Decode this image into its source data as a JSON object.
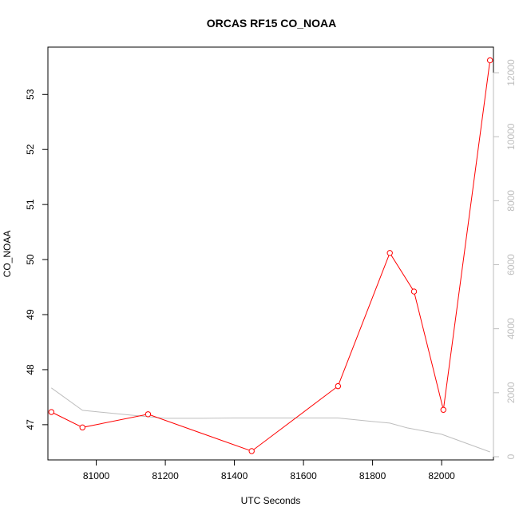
{
  "chart_data": {
    "type": "line",
    "title": "ORCAS RF15 CO_NOAA",
    "xlabel": "UTC Seconds",
    "ylabel": "CO_NOAA",
    "xlim": [
      80860,
      82150
    ],
    "ylim": [
      46.36,
      53.86
    ],
    "y2lim": [
      -100,
      12800
    ],
    "x_ticks": [
      81000,
      81200,
      81400,
      81600,
      81800,
      82000
    ],
    "y_ticks": [
      47,
      48,
      49,
      50,
      51,
      52,
      53
    ],
    "y2_ticks": [
      0,
      2000,
      4000,
      6000,
      8000,
      10000,
      12000
    ],
    "grid": false,
    "legend": "none",
    "series": [
      {
        "color": "#ff0000",
        "marker": "open-circle",
        "axis": "left",
        "x": [
          80870,
          80960,
          81150,
          81450,
          81700,
          81850,
          81920,
          82005,
          82140
        ],
        "values": [
          47.23,
          46.95,
          47.19,
          46.52,
          47.7,
          50.12,
          49.42,
          47.27,
          53.62
        ]
      },
      {
        "color": "#bebebe",
        "marker": "none",
        "axis": "right",
        "x": [
          80870,
          80960,
          81100,
          81200,
          81300,
          81400,
          81500,
          81600,
          81700,
          81800,
          81850,
          81900,
          82000,
          82140
        ],
        "values": [
          2150,
          1450,
          1300,
          1200,
          1200,
          1210,
          1210,
          1210,
          1210,
          1100,
          1050,
          900,
          700,
          150
        ]
      }
    ]
  }
}
